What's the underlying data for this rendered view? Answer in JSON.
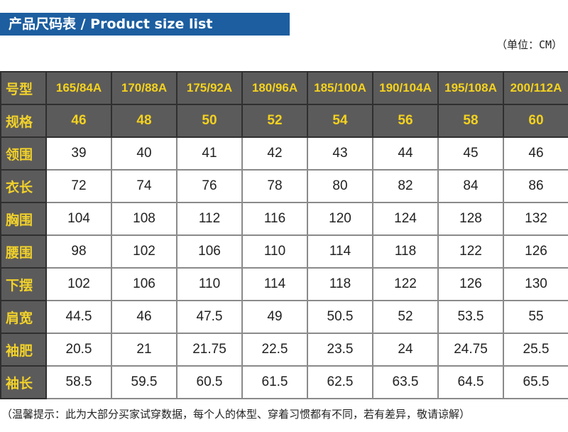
{
  "title": "产品尺码表 / Product size list",
  "unit_note": "（单位：CM）",
  "table": {
    "header_row": {
      "label": "号型",
      "values": [
        "165/84A",
        "170/88A",
        "175/92A",
        "180/96A",
        "185/100A",
        "190/104A",
        "195/108A",
        "200/112A"
      ]
    },
    "spec_row": {
      "label": "规格",
      "values": [
        "46",
        "48",
        "50",
        "52",
        "54",
        "56",
        "58",
        "60"
      ]
    },
    "rows": [
      {
        "label": "领围",
        "values": [
          "39",
          "40",
          "41",
          "42",
          "43",
          "44",
          "45",
          "46"
        ]
      },
      {
        "label": "衣长",
        "values": [
          "72",
          "74",
          "76",
          "78",
          "80",
          "82",
          "84",
          "86"
        ]
      },
      {
        "label": "胸围",
        "values": [
          "104",
          "108",
          "112",
          "116",
          "120",
          "124",
          "128",
          "132"
        ]
      },
      {
        "label": "腰围",
        "values": [
          "98",
          "102",
          "106",
          "110",
          "114",
          "118",
          "122",
          "126"
        ]
      },
      {
        "label": "下摆",
        "values": [
          "102",
          "106",
          "110",
          "114",
          "118",
          "122",
          "126",
          "130"
        ]
      },
      {
        "label": "肩宽",
        "values": [
          "44.5",
          "46",
          "47.5",
          "49",
          "50.5",
          "52",
          "53.5",
          "55"
        ]
      },
      {
        "label": "袖肥",
        "values": [
          "20.5",
          "21",
          "21.75",
          "22.5",
          "23.5",
          "24",
          "24.75",
          "25.5"
        ]
      },
      {
        "label": "袖长",
        "values": [
          "58.5",
          "59.5",
          "60.5",
          "61.5",
          "62.5",
          "63.5",
          "64.5",
          "65.5"
        ]
      }
    ]
  },
  "footer_note": "（温馨提示：此为大部分买家试穿数据，每个人的体型、穿着习惯都有不同，若有差异，敬请谅解）"
}
